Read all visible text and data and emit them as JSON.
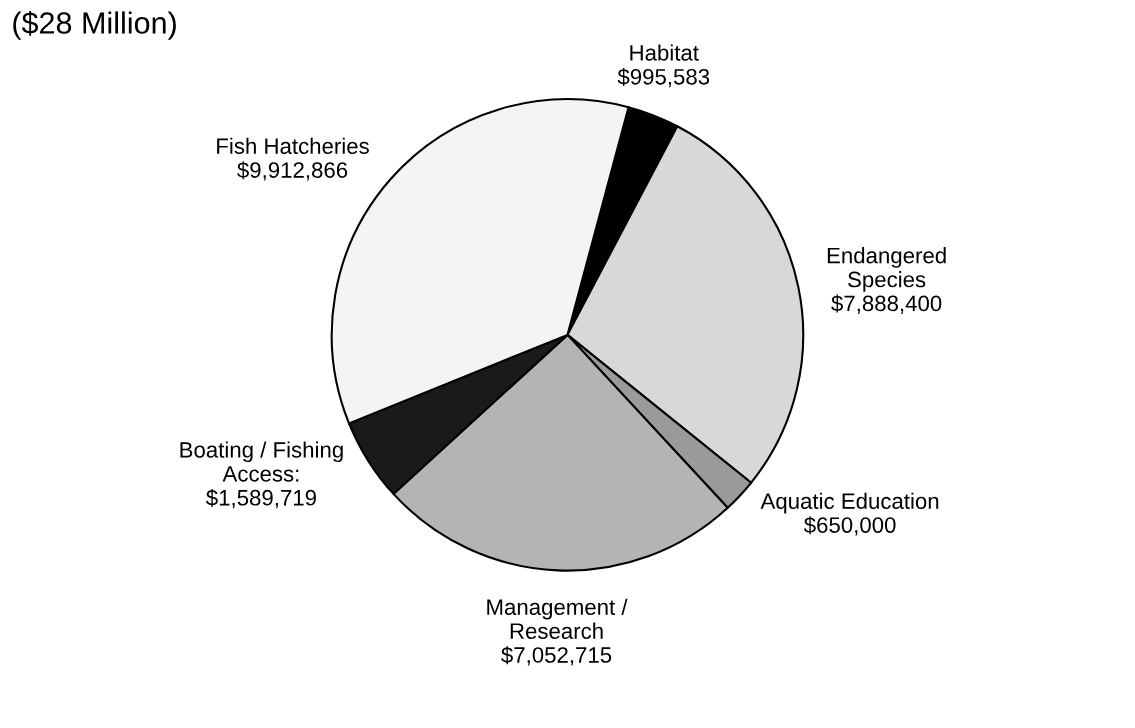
{
  "chart_data": {
    "type": "pie",
    "title": "($28 Million)",
    "categories": [
      "Habitat\n$995,583",
      "Endangered\nSpecies\n$7,888,400",
      "Aquatic Education\n$650,000",
      "Management /\nResearch\n$7,052,715",
      "Boating / Fishing\nAccess:\n$1,589,719",
      "Fish Hatcheries\n$9,912,866"
    ],
    "values": [
      995583,
      7888400,
      650000,
      7052715,
      1589719,
      9912866
    ],
    "colors": [
      "#000000",
      "#d8d8d8",
      "#9a9a9a",
      "#b4b4b4",
      "#1a1a1a",
      "#f4f4f4"
    ],
    "legend": false
  }
}
